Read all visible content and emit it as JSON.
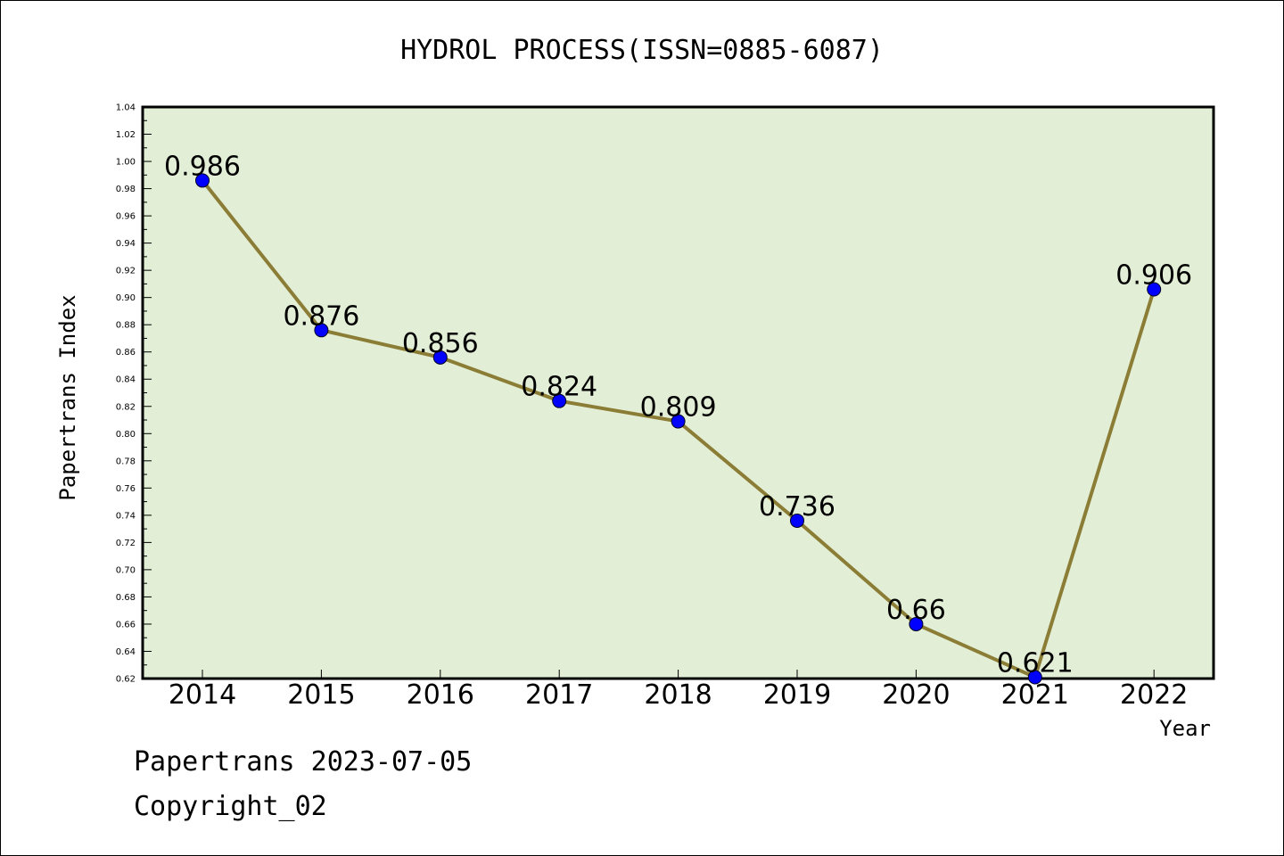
{
  "chart_data": {
    "type": "line",
    "title": "HYDROL PROCESS(ISSN=0885-6087)",
    "xlabel": "Year",
    "ylabel": "Papertrans Index",
    "categories": [
      "2014",
      "2015",
      "2016",
      "2017",
      "2018",
      "2019",
      "2020",
      "2021",
      "2022"
    ],
    "series": [
      {
        "values": [
          0.986,
          0.876,
          0.856,
          0.824,
          0.809,
          0.736,
          0.66,
          0.621,
          0.906
        ]
      }
    ],
    "data_labels": [
      "0.986",
      "0.876",
      "0.856",
      "0.824",
      "0.809",
      "0.736",
      "0.66",
      "0.621",
      "0.906"
    ],
    "ylim": [
      0.62,
      1.04
    ],
    "yticks": [
      "0.62",
      "0.64",
      "0.66",
      "0.68",
      "0.70",
      "0.72",
      "0.74",
      "0.76",
      "0.78",
      "0.80",
      "0.82",
      "0.84",
      "0.86",
      "0.88",
      "0.90",
      "0.92",
      "0.94",
      "0.96",
      "0.98",
      "1.00",
      "1.02",
      "1.04"
    ],
    "grid": false,
    "colors": {
      "plot_background": "#e2efd6",
      "line": "#8b7d35",
      "marker": "#0000ff"
    }
  },
  "footer": {
    "line1": "Papertrans 2023-07-05",
    "line2": "Copyright_02"
  }
}
